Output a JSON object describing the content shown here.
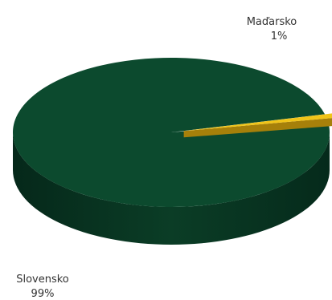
{
  "chart_data": {
    "type": "pie",
    "style": "3d",
    "slices": [
      {
        "label": "Slovensko",
        "value": 99,
        "value_label": "99%",
        "color": "#0c4a2e"
      },
      {
        "label": "Maďarsko",
        "value": 1,
        "value_label": "1%",
        "color": "#f0c419"
      }
    ],
    "legend": "none"
  }
}
